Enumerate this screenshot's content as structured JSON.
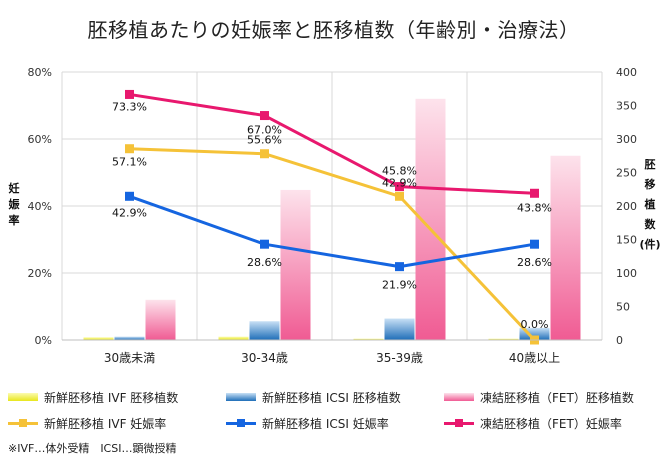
{
  "chart_data": {
    "type": "bar+line",
    "title": "胚移植あたりの妊娠率と胚移植数（年齢別・治療法）",
    "categories": [
      "30歳未満",
      "30-34歳",
      "35-39歳",
      "40歳以上"
    ],
    "y_left": {
      "label": "妊娠率",
      "ticks": [
        "0%",
        "20%",
        "40%",
        "60%",
        "80%"
      ],
      "range": [
        0,
        80
      ]
    },
    "y_right": {
      "label": "胚移植数(件)",
      "ticks": [
        "0",
        "50",
        "100",
        "150",
        "200",
        "250",
        "300",
        "350",
        "400"
      ],
      "range": [
        0,
        400
      ]
    },
    "bar_series": [
      {
        "name": "新鮮胚移植 IVF 胚移植数",
        "color": "#f2f23c",
        "values": [
          4,
          5,
          2,
          2
        ]
      },
      {
        "name": "新鮮胚移植 ICSI 胚移植数",
        "color": "#2a7bc8",
        "values": [
          5,
          28,
          32,
          18
        ]
      },
      {
        "name": "凍結胚移植（FET）胚移植数",
        "color": "#f27aa6",
        "values": [
          60,
          224,
          360,
          275
        ]
      }
    ],
    "line_series": [
      {
        "name": "新鮮胚移植 IVF 妊娠率",
        "color": "#f5c238",
        "values": [
          57.1,
          55.6,
          42.9,
          0.0
        ],
        "labels": [
          "57.1%",
          "55.6%",
          "42.9%",
          "0.0%"
        ]
      },
      {
        "name": "新鮮胚移植 ICSI 妊娠率",
        "color": "#1565e0",
        "values": [
          42.9,
          28.6,
          21.9,
          28.6
        ],
        "labels": [
          "42.9%",
          "28.6%",
          "21.9%",
          "28.6%"
        ]
      },
      {
        "name": "凍結胚移植（FET）妊娠率",
        "color": "#e8186e",
        "values": [
          73.3,
          67.0,
          45.8,
          43.8
        ],
        "labels": [
          "73.3%",
          "67.0%",
          "45.8%",
          "43.8%"
        ]
      }
    ],
    "grid": true,
    "legend_position": "bottom"
  },
  "footnote": "※IVF…体外受精　ICSI…顕微授精"
}
